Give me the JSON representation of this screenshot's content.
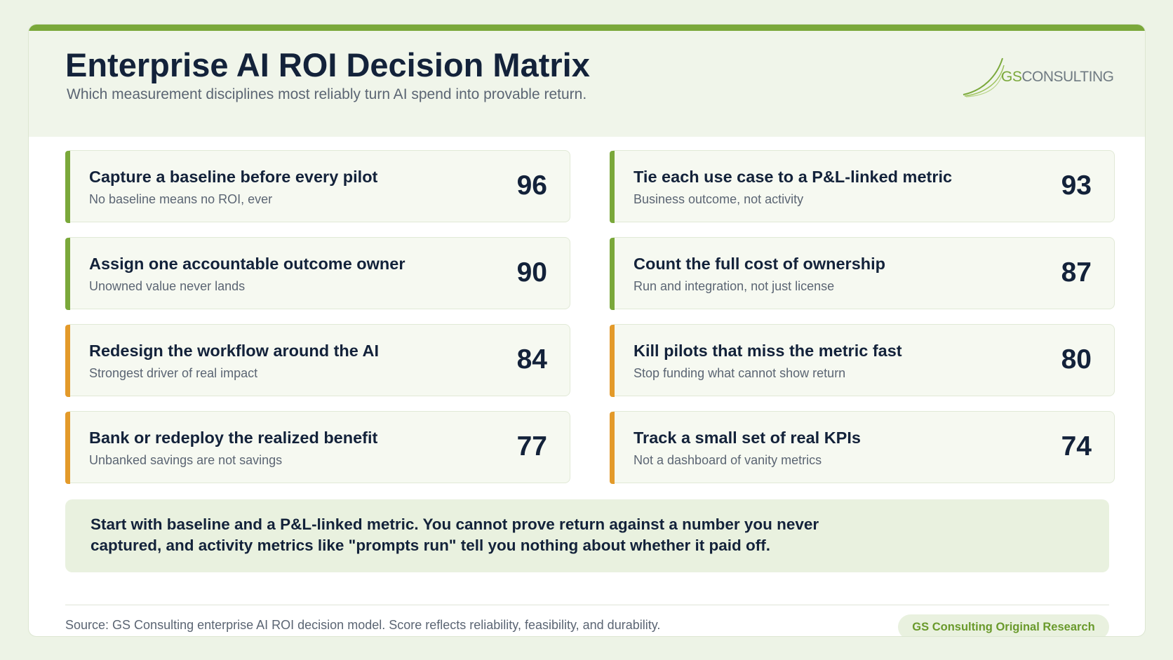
{
  "header": {
    "title": "Enterprise AI ROI Decision Matrix",
    "subtitle": "Which measurement disciplines most reliably turn AI spend into provable return."
  },
  "logo": {
    "accent": "GS",
    "text": "CONSULTING"
  },
  "cards": [
    {
      "title": "Capture a baseline before every pilot",
      "subtitle": "No baseline means no ROI, ever",
      "score": 96,
      "color": "#7aa83a"
    },
    {
      "title": "Tie each use case to a P&L-linked metric",
      "subtitle": "Business outcome, not activity",
      "score": 93,
      "color": "#7aa83a"
    },
    {
      "title": "Assign one accountable outcome owner",
      "subtitle": "Unowned value never lands",
      "score": 90,
      "color": "#7aa83a"
    },
    {
      "title": "Count the full cost of ownership",
      "subtitle": "Run and integration, not just license",
      "score": 87,
      "color": "#7aa83a"
    },
    {
      "title": "Redesign the workflow around the AI",
      "subtitle": "Strongest driver of real impact",
      "score": 84,
      "color": "#e39a2a"
    },
    {
      "title": "Kill pilots that miss the metric fast",
      "subtitle": "Stop funding what cannot show return",
      "score": 80,
      "color": "#e39a2a"
    },
    {
      "title": "Bank or redeploy the realized benefit",
      "subtitle": "Unbanked savings are not savings",
      "score": 77,
      "color": "#e39a2a"
    },
    {
      "title": "Track a small set of real KPIs",
      "subtitle": "Not a dashboard of vanity metrics",
      "score": 74,
      "color": "#e39a2a"
    }
  ],
  "callout": "Start with baseline and a P&L-linked metric. You cannot prove return against a number you never captured, and activity metrics like \"prompts run\" tell you nothing about whether it paid off.",
  "footer": {
    "source": "Source: GS Consulting enterprise AI ROI decision model. Score reflects reliability, feasibility, and durability.",
    "badge": "GS Consulting Original Research"
  }
}
